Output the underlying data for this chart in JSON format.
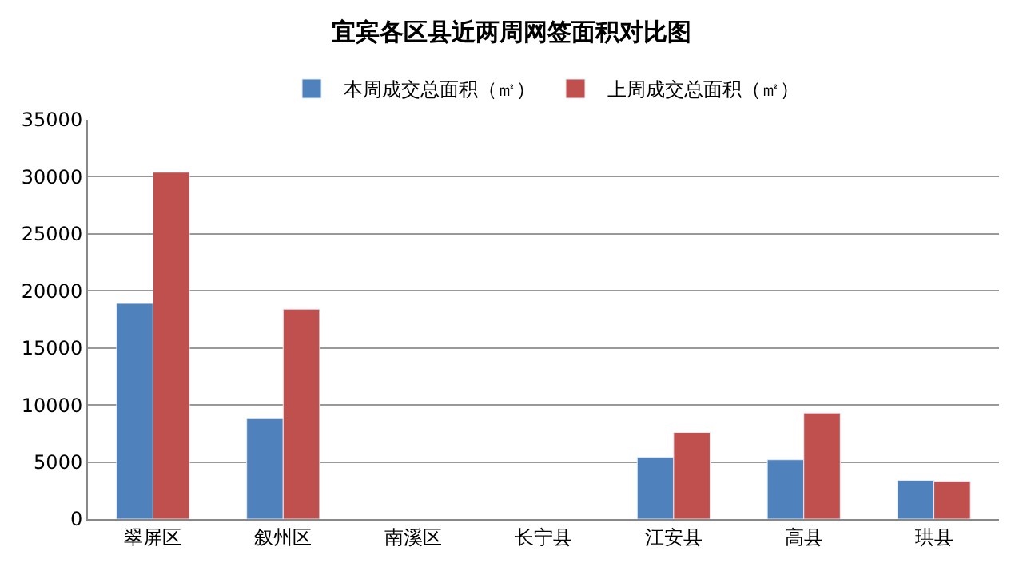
{
  "chart_data": {
    "type": "bar",
    "title": "宜宾各区县近两周网签面积对比图",
    "categories": [
      "翠屏区",
      "叙州区",
      "南溪区",
      "长宁县",
      "江安县",
      "高县",
      "珙县"
    ],
    "series": [
      {
        "name": "本周成交总面积（㎡）",
        "color": "#4f81bd",
        "values": [
          18900,
          8800,
          null,
          null,
          5400,
          5200,
          3400
        ]
      },
      {
        "name": "上周成交总面积（㎡）",
        "color": "#c0504d",
        "values": [
          30400,
          18400,
          null,
          null,
          7600,
          9300,
          3300
        ]
      }
    ],
    "ylim": [
      0,
      35000
    ],
    "yticks": [
      0,
      5000,
      10000,
      15000,
      20000,
      25000,
      30000,
      35000
    ],
    "grid": "y",
    "legend": "top"
  }
}
